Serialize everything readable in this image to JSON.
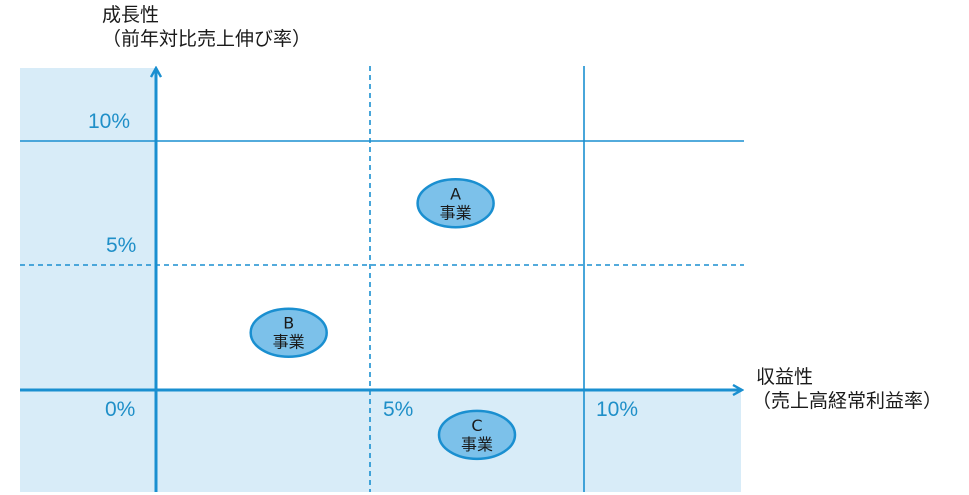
{
  "y_axis": {
    "title": "成長性",
    "subtitle": "（前年対比売上伸び率）"
  },
  "x_axis": {
    "title": "収益性",
    "subtitle": "（売上高経常利益率）"
  },
  "ticks": {
    "y_10": "10%",
    "y_5": "5%",
    "origin": "0%",
    "x_5": "5%",
    "x_10": "10%"
  },
  "businesses": [
    {
      "letter": "A",
      "label": "事業",
      "x": 7,
      "y": 7.5
    },
    {
      "letter": "B",
      "label": "事業",
      "x": 3.1,
      "y": 2.3
    },
    {
      "letter": "C",
      "label": "事業",
      "x": 7.5,
      "y": -1.8
    }
  ],
  "colors": {
    "axis": "#1a8fd0",
    "shade": "#d8ecf8",
    "bubble_fill": "#7cc1ea",
    "bubble_stroke": "#1a8fd0"
  }
}
